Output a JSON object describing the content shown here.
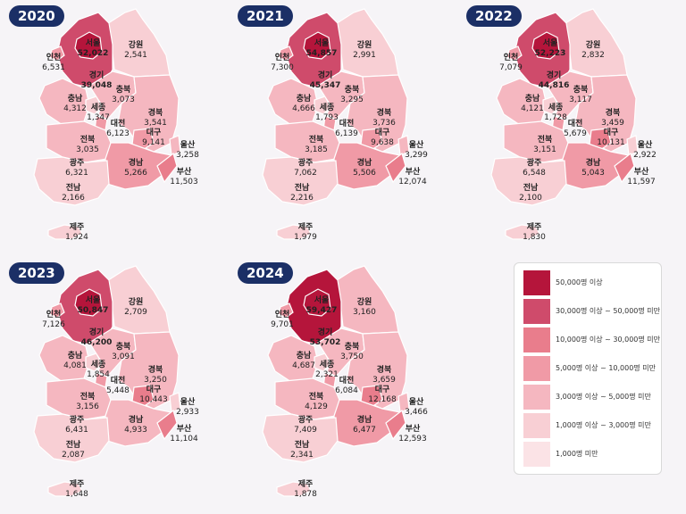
{
  "maps": [
    {
      "year": "2020",
      "regions": {
        "seoul": {
          "name": "서울",
          "value": "52,022"
        },
        "gyeonggi": {
          "name": "경기",
          "value": "39,048"
        },
        "incheon": {
          "name": "인천",
          "value": "6,531"
        },
        "gangwon": {
          "name": "강원",
          "value": "2,541"
        },
        "chungbuk": {
          "name": "충북",
          "value": "3,073"
        },
        "chungnam": {
          "name": "충남",
          "value": "4,312"
        },
        "sejong": {
          "name": "세종",
          "value": "1,347"
        },
        "daejeon": {
          "name": "대전",
          "value": "6,123"
        },
        "gyeongbuk": {
          "name": "경북",
          "value": "3,541"
        },
        "jeonbuk": {
          "name": "전북",
          "value": "3,035"
        },
        "daegu": {
          "name": "대구",
          "value": "9,141"
        },
        "ulsan": {
          "name": "울산",
          "value": "3,258"
        },
        "gwangju": {
          "name": "광주",
          "value": "6,321"
        },
        "gyeongnam": {
          "name": "경남",
          "value": "5,266"
        },
        "busan": {
          "name": "부산",
          "value": "11,503"
        },
        "jeonnam": {
          "name": "전남",
          "value": "2,166"
        },
        "jeju": {
          "name": "제주",
          "value": "1,924"
        }
      }
    },
    {
      "year": "2021",
      "regions": {
        "seoul": {
          "name": "서울",
          "value": "54,857"
        },
        "gyeonggi": {
          "name": "경기",
          "value": "45,347"
        },
        "incheon": {
          "name": "인천",
          "value": "7,300"
        },
        "gangwon": {
          "name": "강원",
          "value": "2,991"
        },
        "chungbuk": {
          "name": "충북",
          "value": "3,295"
        },
        "chungnam": {
          "name": "충남",
          "value": "4,666"
        },
        "sejong": {
          "name": "세종",
          "value": "1,793"
        },
        "daejeon": {
          "name": "대전",
          "value": "6,139"
        },
        "gyeongbuk": {
          "name": "경북",
          "value": "3,736"
        },
        "jeonbuk": {
          "name": "전북",
          "value": "3,185"
        },
        "daegu": {
          "name": "대구",
          "value": "9,638"
        },
        "ulsan": {
          "name": "울산",
          "value": "3,299"
        },
        "gwangju": {
          "name": "광주",
          "value": "7,062"
        },
        "gyeongnam": {
          "name": "경남",
          "value": "5,506"
        },
        "busan": {
          "name": "부산",
          "value": "12,074"
        },
        "jeonnam": {
          "name": "전남",
          "value": "2,216"
        },
        "jeju": {
          "name": "제주",
          "value": "1,979"
        }
      }
    },
    {
      "year": "2022",
      "regions": {
        "seoul": {
          "name": "서울",
          "value": "52,223"
        },
        "gyeonggi": {
          "name": "경기",
          "value": "44,816"
        },
        "incheon": {
          "name": "인천",
          "value": "7,079"
        },
        "gangwon": {
          "name": "강원",
          "value": "2,832"
        },
        "chungbuk": {
          "name": "충북",
          "value": "3,117"
        },
        "chungnam": {
          "name": "충남",
          "value": "4,121"
        },
        "sejong": {
          "name": "세종",
          "value": "1,728"
        },
        "daejeon": {
          "name": "대전",
          "value": "5,679"
        },
        "gyeongbuk": {
          "name": "경북",
          "value": "3,459"
        },
        "jeonbuk": {
          "name": "전북",
          "value": "3,151"
        },
        "daegu": {
          "name": "대구",
          "value": "10,131"
        },
        "ulsan": {
          "name": "울산",
          "value": "2,922"
        },
        "gwangju": {
          "name": "광주",
          "value": "6,548"
        },
        "gyeongnam": {
          "name": "경남",
          "value": "5,043"
        },
        "busan": {
          "name": "부산",
          "value": "11,597"
        },
        "jeonnam": {
          "name": "전남",
          "value": "2,100"
        },
        "jeju": {
          "name": "제주",
          "value": "1,830"
        }
      }
    },
    {
      "year": "2023",
      "regions": {
        "seoul": {
          "name": "서울",
          "value": "50,847"
        },
        "gyeonggi": {
          "name": "경기",
          "value": "46,200"
        },
        "incheon": {
          "name": "인천",
          "value": "7,126"
        },
        "gangwon": {
          "name": "강원",
          "value": "2,709"
        },
        "chungbuk": {
          "name": "충북",
          "value": "3,091"
        },
        "chungnam": {
          "name": "충남",
          "value": "4,081"
        },
        "sejong": {
          "name": "세종",
          "value": "1,854"
        },
        "daejeon": {
          "name": "대전",
          "value": "5,448"
        },
        "gyeongbuk": {
          "name": "경북",
          "value": "3,250"
        },
        "jeonbuk": {
          "name": "전북",
          "value": "3,156"
        },
        "daegu": {
          "name": "대구",
          "value": "10,443"
        },
        "ulsan": {
          "name": "울산",
          "value": "2,933"
        },
        "gwangju": {
          "name": "광주",
          "value": "6,431"
        },
        "gyeongnam": {
          "name": "경남",
          "value": "4,933"
        },
        "busan": {
          "name": "부산",
          "value": "11,104"
        },
        "jeonnam": {
          "name": "전남",
          "value": "2,087"
        },
        "jeju": {
          "name": "제주",
          "value": "1,648"
        }
      }
    },
    {
      "year": "2024",
      "regions": {
        "seoul": {
          "name": "서울",
          "value": "59,427"
        },
        "gyeonggi": {
          "name": "경기",
          "value": "53,702"
        },
        "incheon": {
          "name": "인천",
          "value": "9,701"
        },
        "gangwon": {
          "name": "강원",
          "value": "3,160"
        },
        "chungbuk": {
          "name": "충북",
          "value": "3,750"
        },
        "chungnam": {
          "name": "충남",
          "value": "4,687"
        },
        "sejong": {
          "name": "세종",
          "value": "2,321"
        },
        "daejeon": {
          "name": "대전",
          "value": "6,084"
        },
        "gyeongbuk": {
          "name": "경북",
          "value": "3,659"
        },
        "jeonbuk": {
          "name": "전북",
          "value": "4,129"
        },
        "daegu": {
          "name": "대구",
          "value": "12,168"
        },
        "ulsan": {
          "name": "울산",
          "value": "3,466"
        },
        "gwangju": {
          "name": "광주",
          "value": "7,409"
        },
        "gyeongnam": {
          "name": "경남",
          "value": "6,477"
        },
        "busan": {
          "name": "부산",
          "value": "12,593"
        },
        "jeonnam": {
          "name": "전남",
          "value": "2,341"
        },
        "jeju": {
          "name": "제주",
          "value": "1,878"
        }
      }
    }
  ],
  "legend": [
    {
      "label": "50,000명 이상",
      "color": "#b5153b"
    },
    {
      "label": "30,000명 이상 ~ 50,000명 미만",
      "color": "#cf4b6b"
    },
    {
      "label": "10,000명 이상 ~ 30,000명 미만",
      "color": "#e97d8c"
    },
    {
      "label": "5,000명 이상 ~ 10,000명 미만",
      "color": "#f09aa6"
    },
    {
      "label": "3,000명 이상 ~ 5,000명 미만",
      "color": "#f5b7c0"
    },
    {
      "label": "1,000명 이상 ~ 3,000명 미만",
      "color": "#f8cfd4"
    },
    {
      "label": "1,000명 미만",
      "color": "#fbe3e6"
    }
  ]
}
